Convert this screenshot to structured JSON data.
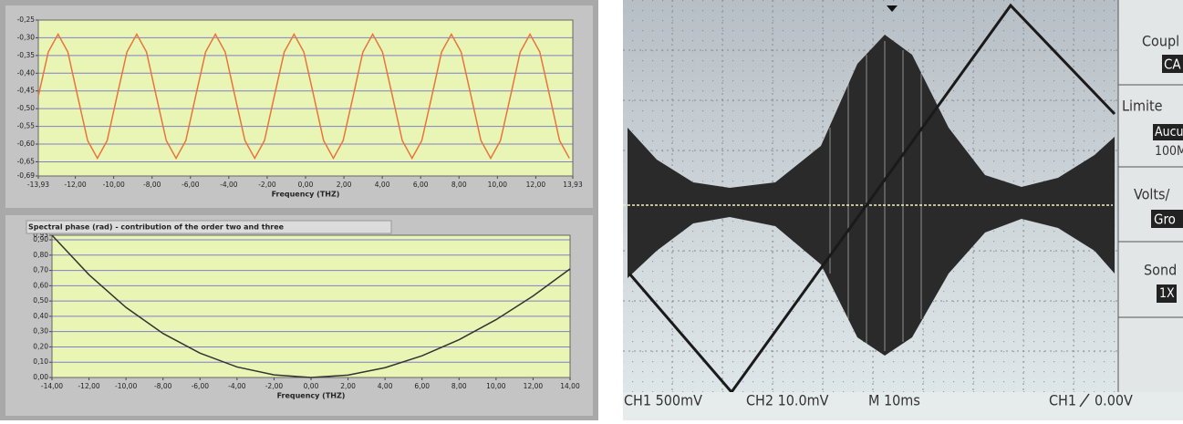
{
  "chart_data": [
    {
      "type": "line",
      "x": [
        -13.93,
        -13.41,
        -12.9,
        -12.39,
        -11.88,
        -11.36,
        -10.85,
        -10.34,
        -9.83,
        -9.31,
        -8.8,
        -8.29,
        -7.78,
        -7.26,
        -6.75,
        -6.24,
        -5.73,
        -5.21,
        -4.7,
        -4.19,
        -3.68,
        -3.16,
        -2.65,
        -2.14,
        -1.63,
        -1.11,
        -0.6,
        -0.09,
        0.43,
        0.94,
        1.45,
        1.96,
        2.48,
        2.99,
        3.5,
        4.01,
        4.53,
        5.04,
        5.55,
        6.06,
        6.58,
        7.09,
        7.6,
        8.11,
        8.63,
        9.14,
        9.65,
        10.16,
        10.68,
        11.19,
        11.7,
        12.21,
        12.73,
        13.24,
        13.75
      ],
      "series": [
        {
          "color": "#e8743b",
          "values": [
            -0.465,
            -0.34,
            -0.29,
            -0.34,
            -0.465,
            -0.59,
            -0.64,
            -0.59,
            -0.465,
            -0.34,
            -0.29,
            -0.34,
            -0.465,
            -0.59,
            -0.64,
            -0.59,
            -0.465,
            -0.34,
            -0.29,
            -0.34,
            -0.465,
            -0.59,
            -0.64,
            -0.59,
            -0.465,
            -0.34,
            -0.29,
            -0.34,
            -0.465,
            -0.59,
            -0.64,
            -0.59,
            -0.465,
            -0.34,
            -0.29,
            -0.34,
            -0.465,
            -0.59,
            -0.64,
            -0.59,
            -0.465,
            -0.34,
            -0.29,
            -0.34,
            -0.465,
            -0.59,
            -0.64,
            -0.59,
            -0.465,
            -0.34,
            -0.29,
            -0.34,
            -0.465,
            -0.59,
            -0.64
          ]
        }
      ],
      "x_label": "Frequency (THZ)",
      "xlim": [
        -13.93,
        13.93
      ],
      "xticks": [
        {
          "value": -13.93,
          "label": "-13,93"
        },
        {
          "value": -12,
          "label": "-12,00"
        },
        {
          "value": -10,
          "label": "-10,00"
        },
        {
          "value": -8,
          "label": "-8,00"
        },
        {
          "value": -6,
          "label": "-6,00"
        },
        {
          "value": -4,
          "label": "-4,00"
        },
        {
          "value": -2,
          "label": "-2,00"
        },
        {
          "value": 0,
          "label": "0,00"
        },
        {
          "value": 2,
          "label": "2,00"
        },
        {
          "value": 4,
          "label": "4,00"
        },
        {
          "value": 6,
          "label": "6,00"
        },
        {
          "value": 8,
          "label": "8,00"
        },
        {
          "value": 10,
          "label": "10,00"
        },
        {
          "value": 12,
          "label": "12,00"
        },
        {
          "value": 13.93,
          "label": "13,93"
        }
      ],
      "ylim": [
        -0.69,
        -0.25
      ],
      "yticks": [
        {
          "value": -0.25,
          "label": "-0,25"
        },
        {
          "value": -0.3,
          "label": "-0,30"
        },
        {
          "value": -0.35,
          "label": "-0,35"
        },
        {
          "value": -0.4,
          "label": "-0,40"
        },
        {
          "value": -0.45,
          "label": "-0,45"
        },
        {
          "value": -0.5,
          "label": "-0,50"
        },
        {
          "value": -0.55,
          "label": "-0,55"
        },
        {
          "value": -0.6,
          "label": "-0,60"
        },
        {
          "value": -0.65,
          "label": "-0,65"
        },
        {
          "value": -0.69,
          "label": "-0,69"
        }
      ],
      "grid": true
    },
    {
      "type": "line",
      "title": "Spectral phase (rad) - contribution of the order two and three",
      "x": [
        -14,
        -12,
        -10,
        -8,
        -6,
        -4,
        -2,
        0,
        2,
        4,
        6,
        8,
        10,
        12,
        14
      ],
      "series": [
        {
          "color": "#333333",
          "values": [
            0.93,
            0.672,
            0.458,
            0.288,
            0.159,
            0.069,
            0.017,
            0,
            0.016,
            0.064,
            0.142,
            0.247,
            0.378,
            0.533,
            0.71
          ]
        }
      ],
      "x_label": "Frequency (THZ)",
      "xlim": [
        -14,
        14
      ],
      "xticks": [
        {
          "value": -14,
          "label": "-14,00"
        },
        {
          "value": -12,
          "label": "-12,00"
        },
        {
          "value": -10,
          "label": "-10,00"
        },
        {
          "value": -8,
          "label": "-8,00"
        },
        {
          "value": -6,
          "label": "-6,00"
        },
        {
          "value": -4,
          "label": "-4,00"
        },
        {
          "value": -2,
          "label": "-2,00"
        },
        {
          "value": 0,
          "label": "0,00"
        },
        {
          "value": 2,
          "label": "2,00"
        },
        {
          "value": 4,
          "label": "4,00"
        },
        {
          "value": 6,
          "label": "6,00"
        },
        {
          "value": 8,
          "label": "8,00"
        },
        {
          "value": 10,
          "label": "10,00"
        },
        {
          "value": 12,
          "label": "12,00"
        },
        {
          "value": 14,
          "label": "14,00"
        }
      ],
      "ylim": [
        0,
        0.93
      ],
      "yticks": [
        {
          "value": 0,
          "label": "0,00"
        },
        {
          "value": 0.1,
          "label": "0,10"
        },
        {
          "value": 0.2,
          "label": "0,20"
        },
        {
          "value": 0.3,
          "label": "0,30"
        },
        {
          "value": 0.4,
          "label": "0,40"
        },
        {
          "value": 0.5,
          "label": "0,50"
        },
        {
          "value": 0.6,
          "label": "0,60"
        },
        {
          "value": 0.7,
          "label": "0,70"
        },
        {
          "value": 0.8,
          "label": "0,80"
        },
        {
          "value": 0.9,
          "label": "0,90"
        },
        {
          "value": 0.93,
          "label": "0,93"
        }
      ],
      "grid": true
    }
  ],
  "oscilloscope": {
    "menu": [
      "Coupl",
      "CA",
      "Limite",
      "Aucu",
      "100M",
      "Volts/",
      "Gro",
      "Sond",
      "1X"
    ],
    "status": [
      "CH1 500mV",
      "CH2 10.0mV",
      "M 10ms",
      "CH1",
      "0.00V"
    ]
  }
}
